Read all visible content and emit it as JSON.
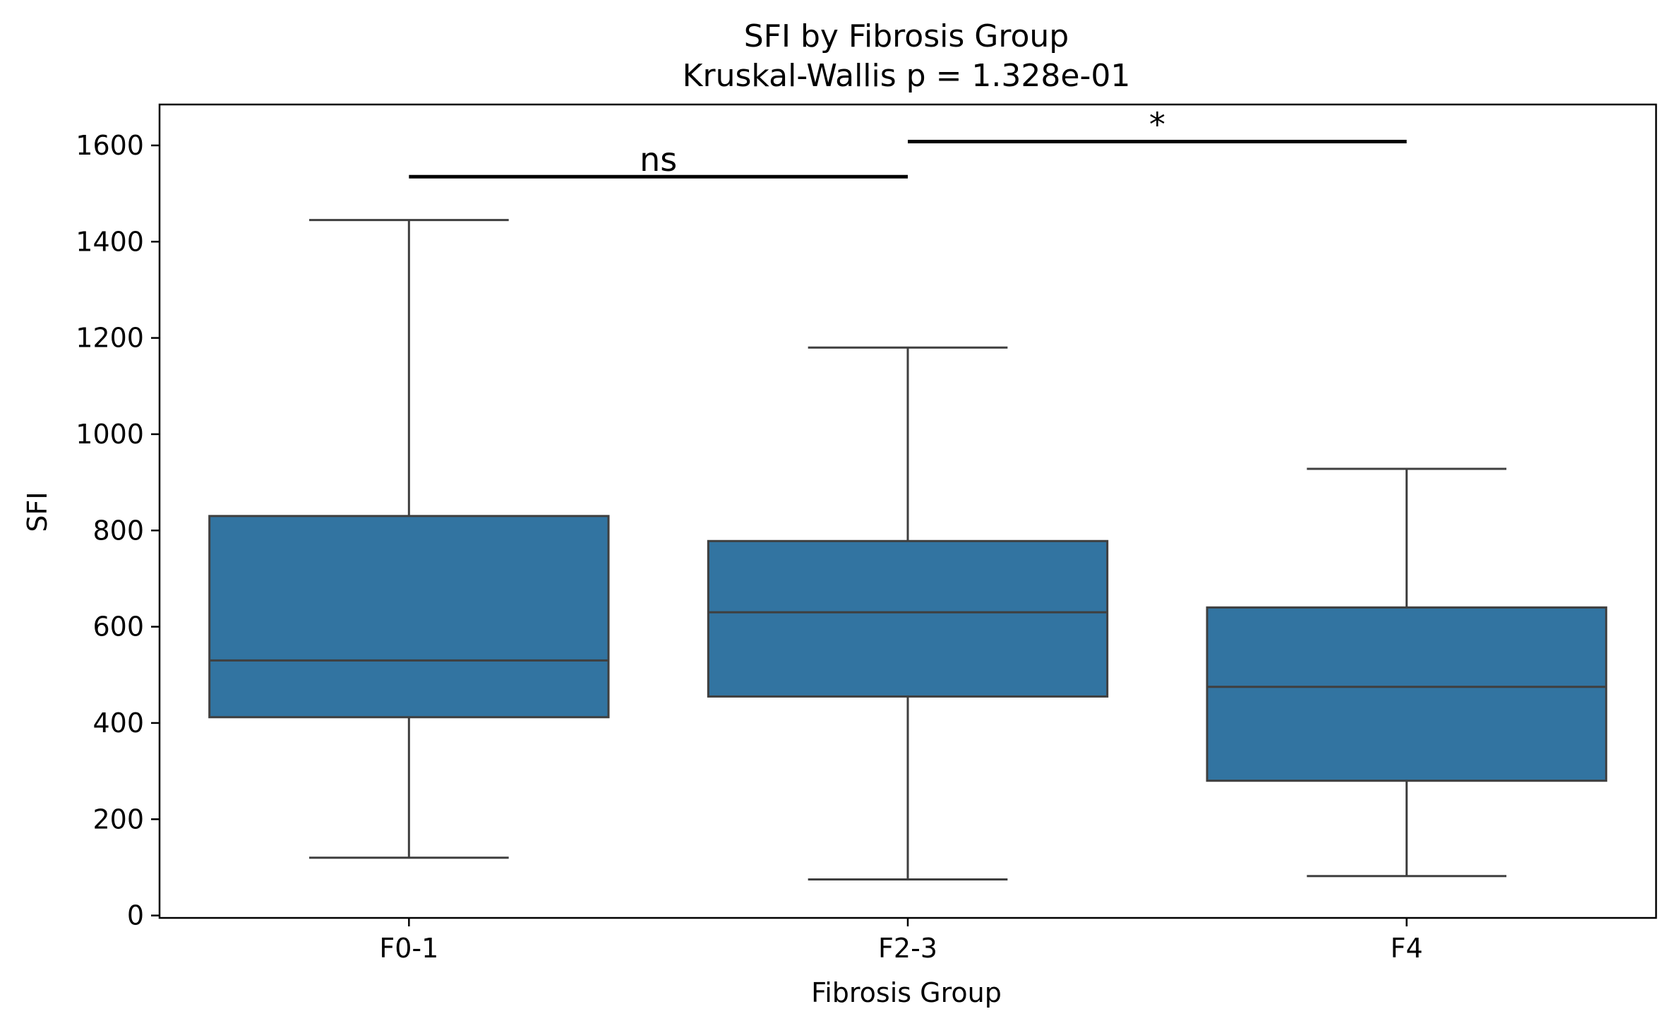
{
  "chart_data": {
    "type": "box",
    "title": "SFI by Fibrosis Group",
    "subtitle": "Kruskal-Wallis p = 1.328e-01",
    "xlabel": "Fibrosis Group",
    "ylabel": "SFI",
    "ylim": [
      -5,
      1685
    ],
    "yticks": [
      0,
      200,
      400,
      600,
      800,
      1000,
      1200,
      1400,
      1600
    ],
    "categories": [
      "F0-1",
      "F2-3",
      "F4"
    ],
    "boxes": [
      {
        "category": "F0-1",
        "whisker_low": 120,
        "q1": 412,
        "median": 530,
        "q3": 830,
        "whisker_high": 1445
      },
      {
        "category": "F2-3",
        "whisker_low": 75,
        "q1": 455,
        "median": 630,
        "q3": 778,
        "whisker_high": 1180
      },
      {
        "category": "F4",
        "whisker_low": 82,
        "q1": 280,
        "median": 475,
        "q3": 640,
        "whisker_high": 928
      }
    ],
    "annotations": [
      {
        "from": "F0-1",
        "to": "F2-3",
        "y": 1535,
        "label": "ns"
      },
      {
        "from": "F2-3",
        "to": "F4",
        "y": 1608,
        "label": "*"
      }
    ],
    "grid": false,
    "colors": {
      "box_fill": "#3274a1",
      "box_edge": "#3f3f3f",
      "annotation_line": "#000000",
      "axes": "#000000"
    }
  }
}
